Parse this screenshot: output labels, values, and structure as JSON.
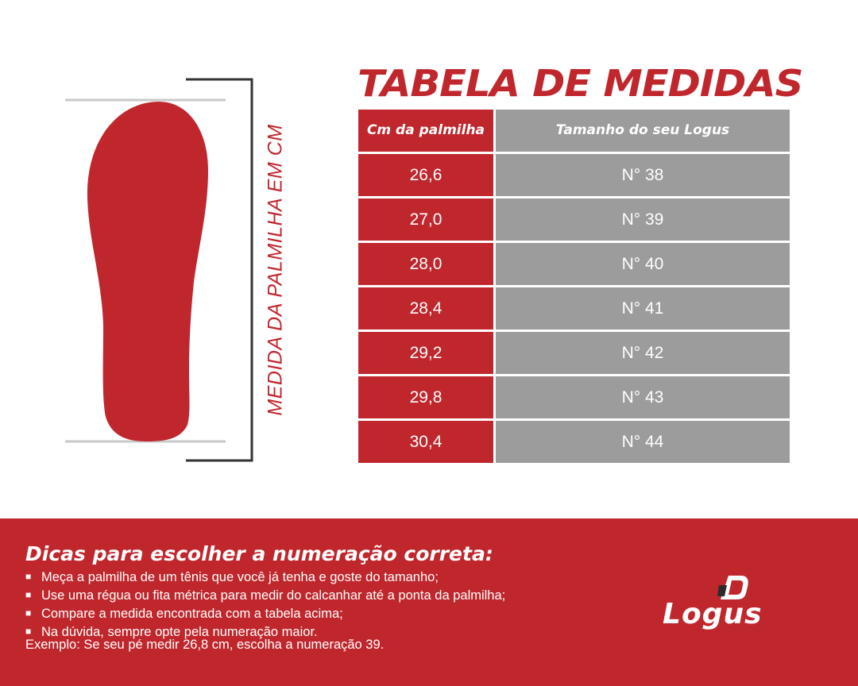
{
  "illustration": {
    "measure_label": "MEDIDA DA PALMILHA EM CM",
    "colors": {
      "insole": "#c0272d",
      "guide_lines": "#c8c8c8",
      "bracket": "#333333"
    }
  },
  "table": {
    "title": "TABELA DE MEDIDAS",
    "headers": {
      "cm": "Cm da palmilha",
      "size": "Tamanho do seu Logus"
    },
    "rows": [
      {
        "cm": "26,6",
        "size": "N° 38"
      },
      {
        "cm": "27,0",
        "size": "N° 39"
      },
      {
        "cm": "28,0",
        "size": "N° 40"
      },
      {
        "cm": "28,4",
        "size": "N° 41"
      },
      {
        "cm": "29,2",
        "size": "N° 42"
      },
      {
        "cm": "29,8",
        "size": "N° 43"
      },
      {
        "cm": "30,4",
        "size": "N° 44"
      }
    ],
    "colors": {
      "accent": "#c0272d",
      "gray": "#9c9c9c"
    }
  },
  "tips": {
    "title": "Dicas para escolher a numeração correta:",
    "items": [
      "Meça a palmilha de um tênis que você já tenha e goste do tamanho;",
      "Use uma régua ou fita métrica para medir do calcanhar até a ponta da palmilha;",
      "Compare a medida encontrada com a tabela acima;",
      "Na dúvida, sempre opte pela numeração maior."
    ],
    "example": "Exemplo: Se seu pé medir 26,8 cm, escolha a numeração 39."
  },
  "brand": {
    "name": "Logus",
    "icon": "logus-logo-mark"
  }
}
